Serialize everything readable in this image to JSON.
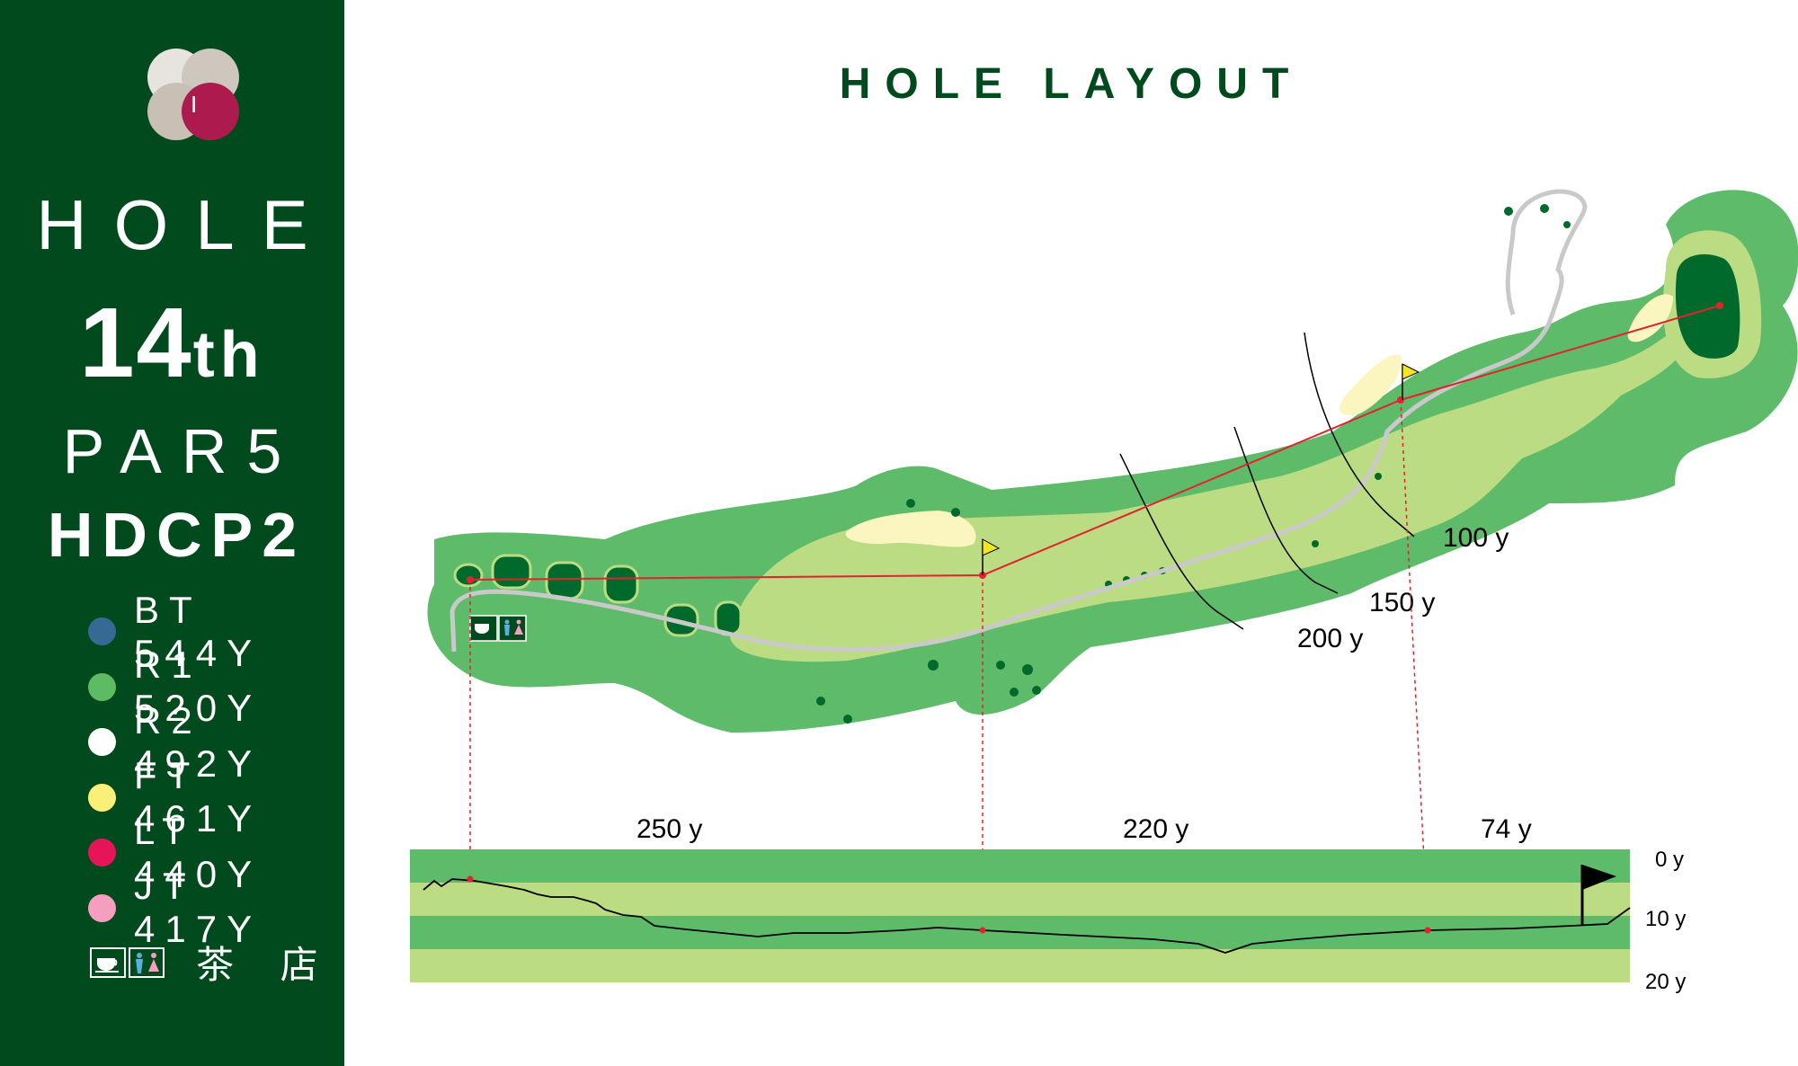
{
  "sidebar": {
    "logo_mark": "I",
    "hole_label": "HOLE",
    "hole_number": "14",
    "hole_suffix": "th",
    "par": "PAR5",
    "hdcp": "HDCP2",
    "tees": [
      {
        "label": "BT 544Y",
        "color": "#376a93"
      },
      {
        "label": "R1 520Y",
        "color": "#5dbb63"
      },
      {
        "label": "R2 492Y",
        "color": "#ffffff"
      },
      {
        "label": "FT 461Y",
        "color": "#faf078"
      },
      {
        "label": "LT 440Y",
        "color": "#e6155a"
      },
      {
        "label": "JT 417Y",
        "color": "#f59ec0"
      }
    ],
    "teahouse_label": "茶 店",
    "teahouse_icons": [
      "tea-cup-icon",
      "restroom-icon"
    ]
  },
  "title": "HOLE LAYOUT",
  "map": {
    "distance_arcs": [
      "200 y",
      "150 y",
      "100 y"
    ],
    "section_distances": [
      "250 y",
      "220 y",
      "74 y"
    ],
    "elevation_labels": [
      "0 y",
      "10 y",
      "20 y"
    ]
  },
  "colors": {
    "sidebar_bg": "#004a1d",
    "rough": "#5dbb6a",
    "fairway": "#bcdc83",
    "bunker": "#fbf5c0",
    "green": "#006a2d",
    "line": "#e2232e"
  }
}
